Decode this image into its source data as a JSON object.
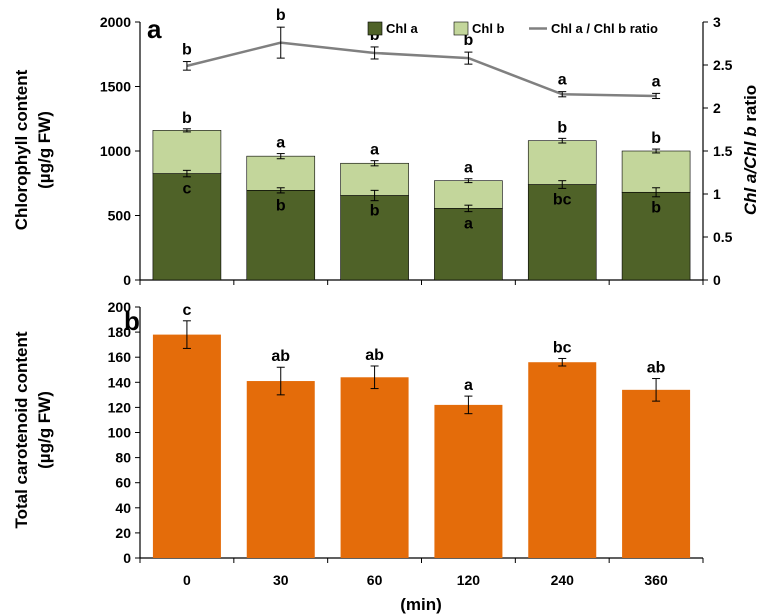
{
  "chart_data": [
    {
      "panel": "a",
      "type": "bar",
      "stacked": true,
      "categories": [
        "0",
        "30",
        "60",
        "120",
        "240",
        "360"
      ],
      "ylabel_line1": "Chlorophyll content",
      "ylabel_line2": "(µg/g FW)",
      "ylim": [
        0,
        2000
      ],
      "yticks": [
        "0",
        "500",
        "1000",
        "1500",
        "2000"
      ],
      "y2label_part1": "Chl a/",
      "y2label_part2": "Chl b",
      "y2label_part3": " ratio",
      "y2lim": [
        0,
        3
      ],
      "y2ticks": [
        "0",
        "0.5",
        "1",
        "1.5",
        "2",
        "2.5",
        "3"
      ],
      "legend_position": "top-right",
      "series": [
        {
          "name": "Chl a",
          "color": "#4f6228",
          "values": [
            825,
            695,
            655,
            555,
            740,
            680
          ],
          "errors": [
            25,
            20,
            40,
            25,
            30,
            35
          ],
          "labels": [
            "c",
            "b",
            "b",
            "a",
            "bc",
            "b"
          ]
        },
        {
          "name": "Chl b",
          "color": "#c3d69b",
          "values": [
            335,
            265,
            250,
            215,
            340,
            320
          ],
          "errors": [
            12,
            20,
            20,
            15,
            18,
            15
          ],
          "labels": [
            "b",
            "a",
            "a",
            "a",
            "b",
            "b"
          ]
        }
      ],
      "line_series": {
        "name": "Chl a / Chl b ratio",
        "color": "#808080",
        "values": [
          2.49,
          2.76,
          2.64,
          2.58,
          2.16,
          2.14
        ],
        "errors": [
          0.05,
          0.18,
          0.07,
          0.07,
          0.03,
          0.03
        ],
        "labels": [
          "b",
          "b",
          "b",
          "b",
          "a",
          "a"
        ]
      }
    },
    {
      "panel": "b",
      "type": "bar",
      "categories": [
        "0",
        "30",
        "60",
        "120",
        "240",
        "360"
      ],
      "ylabel_line1": "Total carotenoid content",
      "ylabel_line2": "(µg/g FW)",
      "ylim": [
        0,
        200
      ],
      "yticks": [
        "0",
        "20",
        "40",
        "60",
        "80",
        "100",
        "120",
        "140",
        "160",
        "180",
        "200"
      ],
      "xlabel": "(min)",
      "series": [
        {
          "name": "",
          "color": "#e46c0a",
          "values": [
            178,
            141,
            144,
            122,
            156,
            134
          ],
          "errors": [
            11,
            11,
            9,
            7,
            3,
            9
          ],
          "labels": [
            "c",
            "ab",
            "ab",
            "a",
            "bc",
            "ab"
          ]
        }
      ]
    }
  ]
}
